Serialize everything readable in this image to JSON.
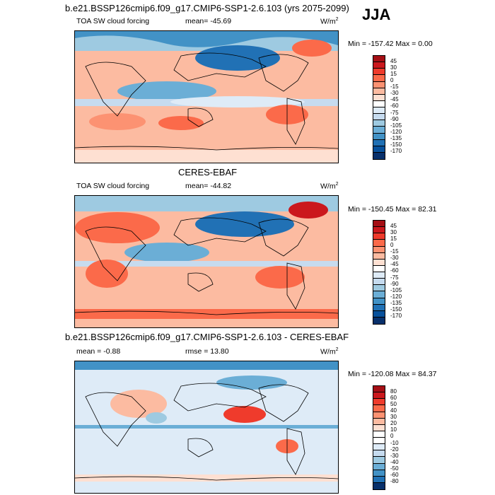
{
  "season": "JJA",
  "panels": [
    {
      "title": "b.e21.BSSP126cmip6.f09_g17.CMIP6-SSP1-2.6.103 (yrs 2075-2099)",
      "variable": "TOA SW cloud forcing",
      "stat": "mean= -45.69",
      "units": "W/m",
      "units_sup": "2",
      "minmax": "Min = -157.42 Max =   0.00",
      "levels": [
        "45",
        "30",
        "15",
        "0",
        "-15",
        "-30",
        "-45",
        "-60",
        "-75",
        "-90",
        "-105",
        "-120",
        "-135",
        "-150",
        "-170"
      ],
      "colors": [
        "#a50f15",
        "#cb181d",
        "#ef3b2c",
        "#fb6a4a",
        "#fc9272",
        "#fcbba1",
        "#fee0d2",
        "#ffffff",
        "#deebf7",
        "#c6dbef",
        "#9ecae1",
        "#6baed6",
        "#4292c6",
        "#2171b5",
        "#08519c",
        "#08306b"
      ]
    },
    {
      "title": "CERES-EBAF",
      "variable": "TOA SW cloud forcing",
      "stat": "mean= -44.82",
      "units": "W/m",
      "units_sup": "2",
      "minmax": "Min = -150.45 Max =  82.31",
      "levels": [
        "45",
        "30",
        "15",
        "0",
        "-15",
        "-30",
        "-45",
        "-60",
        "-75",
        "-90",
        "-105",
        "-120",
        "-135",
        "-150",
        "-170"
      ],
      "colors": [
        "#a50f15",
        "#cb181d",
        "#ef3b2c",
        "#fb6a4a",
        "#fc9272",
        "#fcbba1",
        "#fee0d2",
        "#ffffff",
        "#deebf7",
        "#c6dbef",
        "#9ecae1",
        "#6baed6",
        "#4292c6",
        "#2171b5",
        "#08519c",
        "#08306b"
      ]
    },
    {
      "title": "b.e21.BSSP126cmip6.f09_g17.CMIP6-SSP1-2.6.103 - CERES-EBAF",
      "stat": "mean =  -0.88",
      "rmse": "rmse =  13.80",
      "units": "W/m",
      "units_sup": "2",
      "minmax": "Min = -120.08 Max =  84.37",
      "levels": [
        "80",
        "60",
        "50",
        "40",
        "30",
        "20",
        "10",
        "0",
        "-10",
        "-20",
        "-30",
        "-40",
        "-50",
        "-60",
        "-80"
      ],
      "colors": [
        "#a50f15",
        "#cb181d",
        "#ef3b2c",
        "#fb6a4a",
        "#fc9272",
        "#fcbba1",
        "#fee0d2",
        "#ffffff",
        "#ffffff",
        "#deebf7",
        "#c6dbef",
        "#9ecae1",
        "#6baed6",
        "#4292c6",
        "#2171b5",
        "#08306b"
      ]
    }
  ]
}
